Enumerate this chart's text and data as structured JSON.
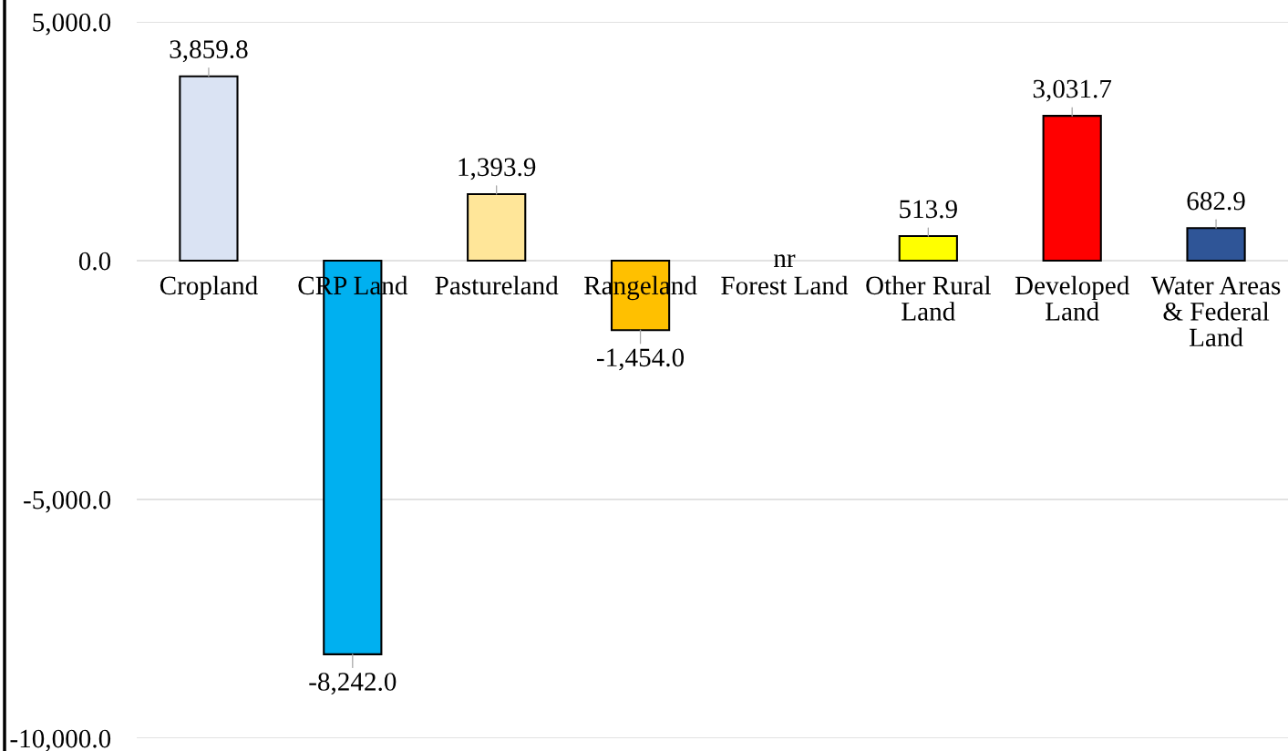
{
  "chart_data": {
    "type": "bar",
    "categories": [
      "Cropland",
      "CRP Land",
      "Pastureland",
      "Rangeland",
      "Forest Land",
      "Other Rural\nLand",
      "Developed\nLand",
      "Water Areas\n& Federal\nLand"
    ],
    "values": [
      3859.8,
      -8242.0,
      1393.9,
      -1454.0,
      null,
      513.9,
      3031.7,
      682.9
    ],
    "colors": [
      "#dae3f3",
      "#00b0f0",
      "#ffe699",
      "#ffc000",
      null,
      "#ffff00",
      "#ff0000",
      "#2f5597"
    ],
    "value_labels": [
      "3,859.8",
      "-8,242.0",
      "1,393.9",
      "-1,454.0",
      "nr",
      "513.9",
      "3,031.7",
      "682.9"
    ],
    "ylim": [
      -10000,
      5000
    ],
    "yticks": [
      {
        "value": 5000,
        "label": "5,000.0"
      },
      {
        "value": 0,
        "label": "0.0"
      },
      {
        "value": -5000,
        "label": "-5,000.0"
      },
      {
        "value": -10000,
        "label": "-10,000.0"
      }
    ],
    "grid": "y"
  }
}
